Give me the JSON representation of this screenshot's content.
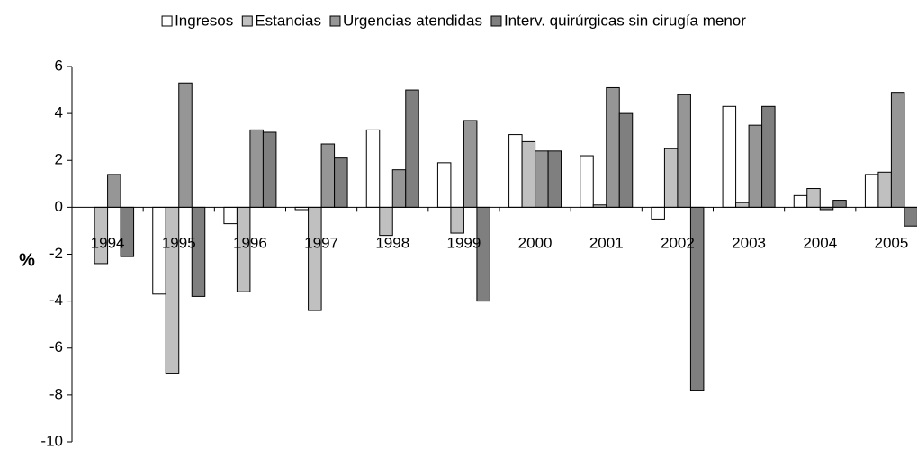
{
  "chart_data": {
    "type": "bar",
    "y_label": "%",
    "categories": [
      "1994",
      "1995",
      "1996",
      "1997",
      "1998",
      "1999",
      "2000",
      "2001",
      "2002",
      "2003",
      "2004",
      "2005"
    ],
    "series": [
      {
        "name": "Ingresos",
        "color": "#ffffff",
        "values": [
          0,
          -3.7,
          -0.7,
          -0.1,
          3.3,
          1.9,
          3.1,
          2.2,
          -0.5,
          4.3,
          0.5,
          1.4
        ]
      },
      {
        "name": "Estancias",
        "color": "#c0c0c0",
        "values": [
          -2.4,
          -7.1,
          -3.6,
          -4.4,
          -1.2,
          -1.1,
          2.8,
          0.1,
          2.5,
          0.2,
          0.8,
          1.5
        ]
      },
      {
        "name": "Urgencias atendidas",
        "color": "#969696",
        "values": [
          1.4,
          5.3,
          3.3,
          2.7,
          1.6,
          3.7,
          2.4,
          5.1,
          4.8,
          3.5,
          -0.1,
          4.9
        ]
      },
      {
        "name": "Interv. quirúrgicas sin cirugía menor",
        "color": "#7f7f7f",
        "values": [
          -2.1,
          -3.8,
          3.2,
          2.1,
          5.0,
          -4.0,
          2.4,
          4.0,
          -7.8,
          4.3,
          0.3,
          -0.8
        ]
      }
    ],
    "ylim": [
      -10,
      6
    ],
    "yticks": [
      -10,
      -8,
      -6,
      -4,
      -2,
      0,
      2,
      4,
      6
    ],
    "legend": "top"
  }
}
